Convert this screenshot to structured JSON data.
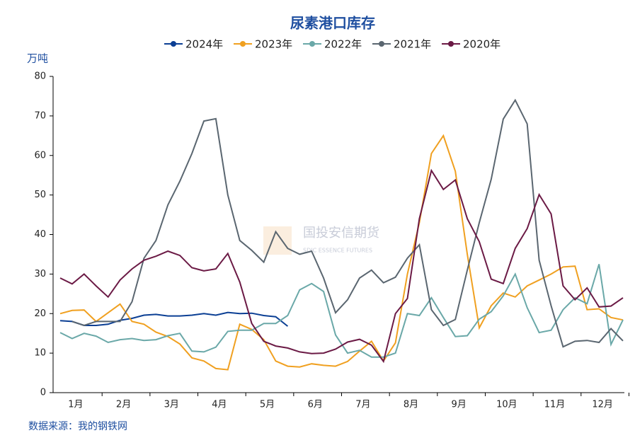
{
  "chart_data": {
    "type": "line",
    "title": "尿素港口库存",
    "y_label": "万吨",
    "source": "数据来源：我的钢铁网",
    "watermark": "国投安信期货",
    "watermark_sub": "SDIC ESSENCE FUTURES",
    "categories": [
      null,
      "1月",
      null,
      null,
      null,
      "2月",
      null,
      null,
      null,
      "3月",
      null,
      null,
      null,
      "4月",
      null,
      null,
      null,
      "5月",
      null,
      null,
      null,
      "6月",
      null,
      null,
      null,
      "7月",
      null,
      null,
      null,
      "8月",
      null,
      null,
      null,
      "9月",
      null,
      null,
      null,
      "10月",
      null,
      null,
      null,
      "11月",
      null,
      null,
      null,
      "12月",
      null,
      null
    ],
    "ylim": [
      0,
      80
    ],
    "yticks": [
      0,
      10,
      20,
      30,
      40,
      50,
      60,
      70,
      80
    ],
    "grid": false,
    "legend": "top",
    "series": [
      {
        "name": "2024年",
        "color": "#0b3f94",
        "values": [
          18.2,
          18.0,
          17.0,
          17.0,
          17.3,
          18.3,
          18.8,
          19.6,
          19.8,
          19.4,
          19.4,
          19.6,
          20.0,
          19.6,
          20.3,
          20.0,
          20.1,
          19.5,
          19.2,
          16.8,
          null,
          null,
          null,
          null,
          null,
          null,
          null,
          null,
          null,
          null,
          null,
          null,
          null,
          null,
          null,
          null,
          null,
          null,
          null,
          null,
          null,
          null,
          null,
          null,
          null,
          null,
          null,
          null
        ]
      },
      {
        "name": "2023年",
        "color": "#f0a020",
        "values": [
          20,
          20.8,
          20.9,
          18,
          20.2,
          22.4,
          18,
          17.3,
          15.3,
          14.2,
          12.3,
          8.8,
          8,
          6.1,
          5.8,
          17.3,
          16,
          13.4,
          8,
          6.7,
          6.5,
          7.3,
          6.9,
          6.7,
          7.9,
          10.5,
          13,
          8,
          12.6,
          30,
          43,
          60.5,
          65,
          56,
          35,
          16.4,
          22,
          25.2,
          24.2,
          27,
          28.5,
          30,
          31.8,
          32,
          21,
          21.2,
          19,
          18.4
        ]
      },
      {
        "name": "2022年",
        "color": "#6aa8a8",
        "values": [
          15.2,
          13.7,
          15,
          14.3,
          12.7,
          13.4,
          13.7,
          13.2,
          13.4,
          14.4,
          15,
          10.5,
          10.3,
          11.5,
          15.5,
          15.8,
          15.8,
          17.5,
          17.5,
          19.5,
          26,
          27.6,
          25.6,
          14.6,
          10,
          10.7,
          9,
          9,
          10,
          20,
          19.5,
          24,
          19,
          14.2,
          14.4,
          18.6,
          20.5,
          24.5,
          30,
          21.5,
          15.2,
          15.8,
          21,
          24,
          22.5,
          32.5,
          12.2,
          18.4
        ]
      },
      {
        "name": "2021年",
        "color": "#5a6670",
        "values": [
          null,
          18,
          17,
          18,
          18,
          18,
          23,
          34,
          38.5,
          47.5,
          53.5,
          60.5,
          68.7,
          69.3,
          50,
          38.5,
          36,
          33,
          40.7,
          36.5,
          35,
          35.8,
          29,
          20.2,
          23.5,
          29,
          31,
          27.8,
          29.2,
          34,
          37.4,
          21,
          17,
          18.5,
          31,
          43,
          54,
          69.2,
          74,
          68,
          33.5,
          22,
          11.6,
          13,
          13.2,
          12.7,
          16.2,
          13.1
        ]
      },
      {
        "name": "2020年",
        "color": "#6b1a45",
        "values": [
          29,
          27.5,
          30,
          27,
          24.2,
          28.5,
          31.3,
          33.5,
          34.5,
          35.8,
          34.7,
          31.6,
          30.8,
          31.3,
          35.2,
          28,
          17.5,
          13,
          11.8,
          11.3,
          10.3,
          9.9,
          10,
          11,
          12.8,
          13.5,
          12,
          7.9,
          20,
          23.8,
          44,
          56.2,
          51.4,
          53.8,
          44,
          38.2,
          28.7,
          27.6,
          36.5,
          41.5,
          50.1,
          45.2,
          27,
          23.5,
          26.5,
          21.7,
          21.9,
          24
        ]
      }
    ]
  }
}
